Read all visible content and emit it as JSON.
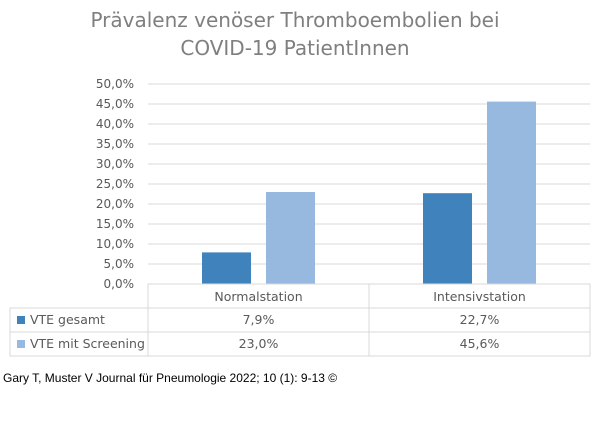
{
  "chart_data": {
    "type": "bar",
    "title_lines": [
      "Prävalenz venöser Thromboembolien bei",
      "COVID-19 PatientInnen"
    ],
    "categories": [
      "Normalstation",
      "Intensivstation"
    ],
    "series": [
      {
        "name": "VTE gesamt",
        "values": [
          7.9,
          22.7
        ],
        "labels": [
          "7,9%",
          "22,7%"
        ],
        "color": "#3f82bc"
      },
      {
        "name": "VTE mit Screening",
        "values": [
          23.0,
          45.6
        ],
        "labels": [
          "23,0%",
          "45,6%"
        ],
        "color": "#98b9df"
      }
    ],
    "ylim": [
      0,
      50
    ],
    "yticks": [
      "0,0%",
      "5,0%",
      "10,0%",
      "15,0%",
      "20,0%",
      "25,0%",
      "30,0%",
      "35,0%",
      "40,0%",
      "45,0%",
      "50,0%"
    ],
    "grid": true,
    "legend": "data-table"
  },
  "source": "Gary T, Muster V Journal für Pneumologie 2022; 10 (1): 9-13 ©"
}
